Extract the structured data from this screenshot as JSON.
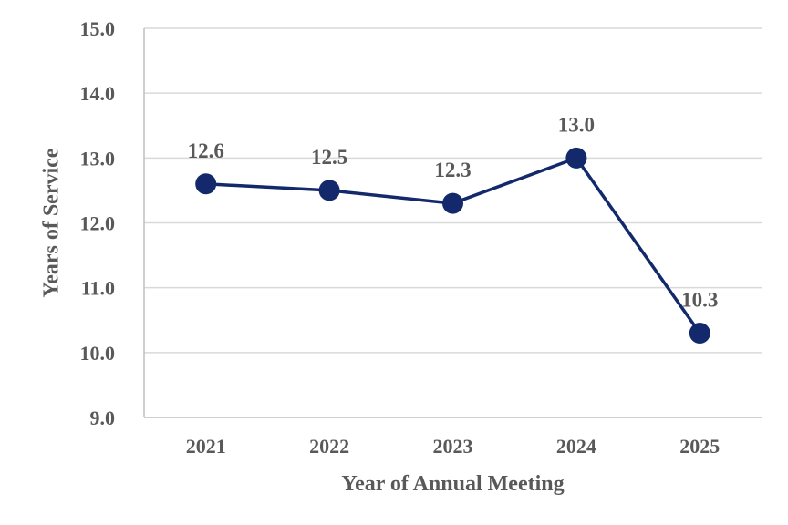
{
  "chart_data": {
    "type": "line",
    "title": "",
    "xlabel": "Year of Annual Meeting",
    "ylabel": "Years of Service",
    "categories": [
      "2021",
      "2022",
      "2023",
      "2024",
      "2025"
    ],
    "series": [
      {
        "values": [
          12.6,
          12.5,
          12.3,
          13.0,
          10.3
        ]
      }
    ],
    "data_labels": [
      "12.6",
      "12.5",
      "12.3",
      "13.0",
      "10.3"
    ],
    "yticks": [
      "9.0",
      "10.0",
      "11.0",
      "12.0",
      "13.0",
      "14.0",
      "15.0"
    ],
    "ylim": [
      9.0,
      15.0
    ],
    "grid": true,
    "legend": "none",
    "line_color": "#13296b",
    "marker_color": "#13296b",
    "gridline_color": "#d9d9d9",
    "text_color": "#595959"
  }
}
